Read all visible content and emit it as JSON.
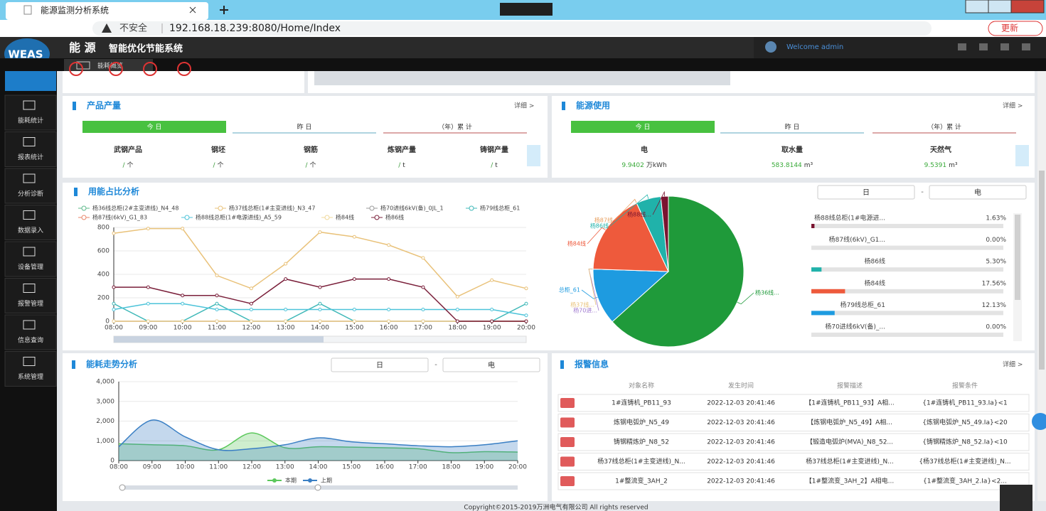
{
  "browser": {
    "tab_title": "能源监测分析系统",
    "security": "不安全",
    "url": "192.168.18.239:8080/Home/Index",
    "update_button": "更新"
  },
  "header": {
    "logo": "WEAS",
    "title_main": "能 源",
    "title_sub": "智能优化节能系统",
    "welcome": "Welcome admin"
  },
  "page_tab": "能耗概览",
  "sidebar": [
    "能耗统计",
    "报表统计",
    "分析诊断",
    "数据录入",
    "设备管理",
    "报警管理",
    "信息查询",
    "系统管理"
  ],
  "product_panel": {
    "title": "产品产量",
    "detail": "详细 >",
    "tabs": [
      "今 日",
      "昨 日",
      "（年）累 计"
    ],
    "items": [
      {
        "name": "武钢产品",
        "value": "/",
        "unit": "个"
      },
      {
        "name": "钢坯",
        "value": "/",
        "unit": "个"
      },
      {
        "name": "钢筋",
        "value": "/",
        "unit": "个"
      },
      {
        "name": "炼钢产量",
        "value": "/",
        "unit": "t"
      },
      {
        "name": "铸钢产量",
        "value": "/",
        "unit": "t"
      }
    ]
  },
  "energy_panel": {
    "title": "能源使用",
    "detail": "详细 >",
    "tabs": [
      "今 日",
      "昨 日",
      "（年）累 计"
    ],
    "items": [
      {
        "name": "电",
        "value": "9.9402",
        "unit": "万kWh"
      },
      {
        "name": "取水量",
        "value": "583.8144",
        "unit": "m³"
      },
      {
        "name": "天然气",
        "value": "9.5391",
        "unit": "m³"
      }
    ]
  },
  "usage_chart": {
    "type": "line",
    "title": "用能占比分析",
    "period": "日",
    "range_separator": "-",
    "energy": "电",
    "x": [
      "08:00",
      "09:00",
      "10:00",
      "11:00",
      "12:00",
      "13:00",
      "14:00",
      "15:00",
      "16:00",
      "17:00",
      "18:00",
      "19:00",
      "20:00"
    ],
    "ylim": [
      0,
      800
    ],
    "yticks": [
      0,
      200,
      400,
      600,
      800
    ],
    "series": [
      {
        "name": "杨36线总柜(2#主变进线)_N4_48",
        "color": "#5cb88a",
        "values": [
          0,
          0,
          0,
          0,
          0,
          0,
          0,
          0,
          0,
          0,
          0,
          0,
          0
        ]
      },
      {
        "name": "杨37线总柜(1#主变进线)_N3_47",
        "color": "#e9c27a",
        "values": [
          750,
          790,
          790,
          390,
          280,
          490,
          760,
          720,
          650,
          540,
          210,
          350,
          280
        ]
      },
      {
        "name": "杨70进线6kV(备)_0JL_1",
        "color": "#9a9a9a",
        "values": [
          0,
          0,
          0,
          0,
          0,
          0,
          0,
          0,
          0,
          0,
          0,
          0,
          0
        ]
      },
      {
        "name": "杨79线总柜_61",
        "color": "#3fb8b8",
        "values": [
          150,
          0,
          0,
          150,
          0,
          0,
          150,
          0,
          0,
          0,
          0,
          0,
          150
        ]
      },
      {
        "name": "杨87线(6kV)_G1_83",
        "color": "#e8866a",
        "values": [
          0,
          0,
          0,
          0,
          0,
          0,
          0,
          0,
          0,
          0,
          0,
          0,
          0
        ]
      },
      {
        "name": "杨88线总柜(1#电源进线)_A5_59",
        "color": "#4cc3d9",
        "values": [
          100,
          150,
          150,
          100,
          100,
          100,
          100,
          100,
          100,
          100,
          100,
          100,
          50
        ]
      },
      {
        "name": "杨84线",
        "color": "#f0d89a",
        "values": [
          0,
          0,
          0,
          0,
          0,
          0,
          0,
          0,
          0,
          0,
          0,
          0,
          0
        ]
      },
      {
        "name": "杨86线",
        "color": "#7a1f3a",
        "values": [
          290,
          290,
          220,
          220,
          150,
          360,
          290,
          360,
          360,
          290,
          0,
          0,
          0
        ]
      }
    ]
  },
  "ratio_pie": {
    "type": "pie",
    "labels": [
      "杨36线...",
      "总柜_61",
      "杨70进...",
      "杨37线...",
      "杨84线",
      "杨87线",
      "杨86线",
      "杨88线..."
    ],
    "values": [
      63.38,
      12.13,
      0,
      0,
      17.56,
      0,
      5.3,
      1.63
    ],
    "colors": [
      "#1f9a3a",
      "#1e9be0",
      "#a07ad0",
      "#e9c27a",
      "#ee5a3c",
      "#e8a060",
      "#20b2aa",
      "#7a1430"
    ]
  },
  "ratio_list": {
    "labels": [
      "杨88线总柜(1#电源进...",
      "杨87线(6kV)_G1...",
      "杨86线",
      "杨84线",
      "杨79线总柜_61",
      "杨70进线6kV(备)_..."
    ],
    "values": [
      1.63,
      0,
      5.3,
      17.56,
      12.13,
      0
    ],
    "value_labels": [
      "1.63%",
      "0.00%",
      "5.30%",
      "17.56%",
      "12.13%",
      "0.00%"
    ],
    "colors": [
      "#7a1430",
      "#e8a060",
      "#20b2aa",
      "#ee5a3c",
      "#1e9be0",
      "#a07ad0"
    ]
  },
  "trend_chart": {
    "type": "area",
    "title": "能耗走势分析",
    "period": "日",
    "range_separator": "-",
    "energy": "电",
    "x": [
      "08:00",
      "09:00",
      "10:00",
      "11:00",
      "12:00",
      "13:00",
      "14:00",
      "15:00",
      "16:00",
      "17:00",
      "18:00",
      "19:00",
      "20:00"
    ],
    "ylim": [
      0,
      4000
    ],
    "yticks": [
      0,
      {
        "value": 1000,
        "label": "1,000"
      },
      {
        "value": 2000,
        "label": "2,000"
      },
      {
        "value": 3000,
        "label": "3,000"
      },
      {
        "value": 4000,
        "label": "4,000"
      }
    ],
    "series": [
      {
        "name": "本期",
        "color": "#5cc85c",
        "values": [
          850,
          800,
          750,
          550,
          1400,
          650,
          700,
          680,
          650,
          600,
          400,
          450,
          430
        ]
      },
      {
        "name": "上期",
        "color": "#3a7fc4",
        "values": [
          700,
          2050,
          1200,
          550,
          600,
          800,
          1150,
          950,
          850,
          750,
          700,
          800,
          1000
        ]
      }
    ]
  },
  "alarm_panel": {
    "title": "报警信息",
    "detail": "详细 >",
    "columns": [
      "对象名称",
      "发生时间",
      "报警描述",
      "报警条件"
    ],
    "rows": [
      [
        "1#连铸机_PB11_93",
        "2022-12-03 20:41:46",
        "【1#连铸机_PB11_93】A相...",
        "{1#连铸机_PB11_93.Ia}<1"
      ],
      [
        "炼钢电弧炉_N5_49",
        "2022-12-03 20:41:46",
        "【炼钢电弧炉_N5_49】A相...",
        "{炼钢电弧炉_N5_49.Ia}<20"
      ],
      [
        "铸钢精炼炉_N8_52",
        "2022-12-03 20:41:46",
        "【锻造电弧炉(MVA)_N8_52...",
        "{铸钢精炼炉_N8_52.Ia}<10"
      ],
      [
        "杨37线总柜(1#主变进线)_N...",
        "2022-12-03 20:41:46",
        "杨37线总柜(1#主变进线)_N...",
        "{杨37线总柜(1#主变进线)_N..."
      ],
      [
        "1#整流变_3AH_2",
        "2022-12-03 20:41:46",
        "【1#整流变_3AH_2】A相电...",
        "{1#整流变_3AH_2.Ia}<2..."
      ]
    ]
  },
  "footer": "Copyright©2015-2019万洲电气有限公司 All rights reserved"
}
